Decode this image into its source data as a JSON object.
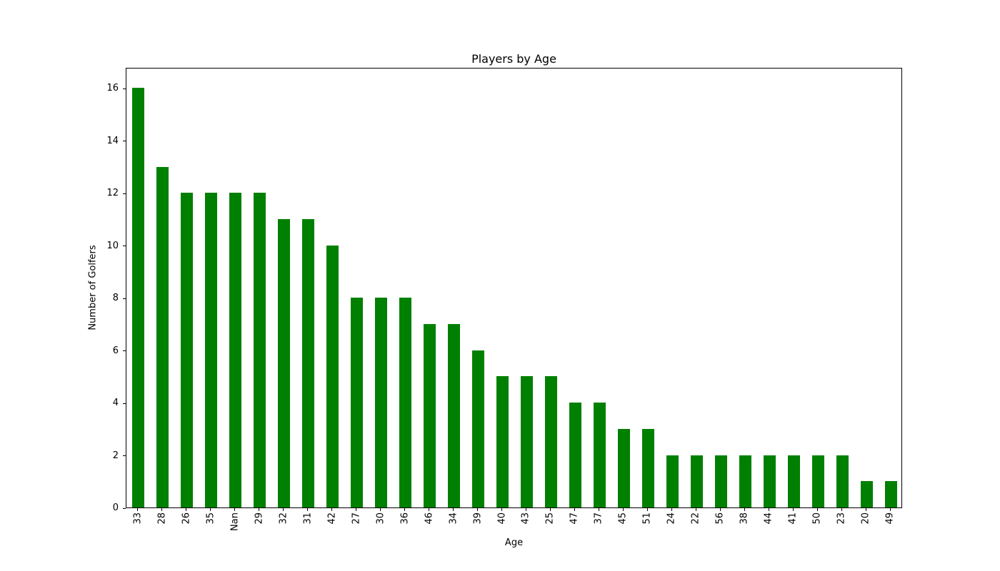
{
  "chart_data": {
    "type": "bar",
    "title": "Players by Age",
    "xlabel": "Age",
    "ylabel": "Number of Golfers",
    "categories": [
      "33",
      "28",
      "26",
      "35",
      "Nan",
      "29",
      "32",
      "31",
      "42",
      "27",
      "30",
      "36",
      "46",
      "34",
      "39",
      "40",
      "43",
      "25",
      "47",
      "37",
      "45",
      "51",
      "24",
      "22",
      "56",
      "38",
      "44",
      "41",
      "50",
      "23",
      "20",
      "49"
    ],
    "values": [
      16,
      13,
      12,
      12,
      12,
      12,
      11,
      11,
      10,
      8,
      8,
      8,
      7,
      7,
      6,
      5,
      5,
      5,
      4,
      4,
      3,
      3,
      2,
      2,
      2,
      2,
      2,
      2,
      2,
      2,
      1,
      1
    ],
    "yticks": [
      0,
      2,
      4,
      6,
      8,
      10,
      12,
      14,
      16
    ],
    "ylim": [
      0,
      16.8
    ],
    "bar_color": "#008000",
    "bar_width_fraction": 0.5,
    "x_tick_rotation_deg": 90,
    "grid": false
  }
}
